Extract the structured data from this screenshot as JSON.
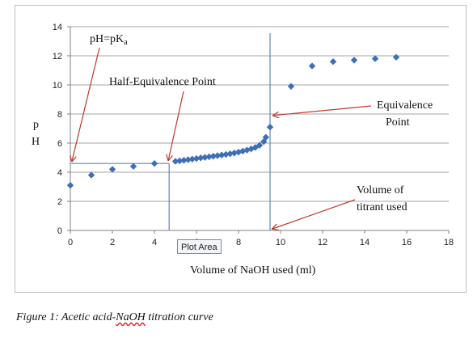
{
  "chart_data": {
    "type": "scatter",
    "xlabel": "Volume  of NaOH used (ml)",
    "ylabel": "p H",
    "xlim": [
      0,
      18
    ],
    "ylim": [
      0,
      14
    ],
    "xticks": [
      0,
      2,
      4,
      6,
      8,
      10,
      12,
      14,
      16,
      18
    ],
    "yticks": [
      0,
      2,
      4,
      6,
      8,
      10,
      12,
      14
    ],
    "grid": "horizontal",
    "marker_color": "#3f6fb5",
    "line_color": "#5b86c4",
    "arrow_color": "#c0392b",
    "series": [
      {
        "x": [
          0,
          1,
          2,
          3,
          4,
          5,
          5.2,
          5.4,
          5.6,
          5.8,
          6.0,
          6.2,
          6.4,
          6.6,
          6.8,
          7.0,
          7.2,
          7.4,
          7.6,
          7.8,
          8.0,
          8.2,
          8.4,
          8.6,
          8.8,
          9.0,
          9.2,
          9.3,
          9.5,
          10.5,
          11.5,
          12.5,
          13.5,
          14.5,
          15.5
        ],
        "y": [
          3.1,
          3.8,
          4.2,
          4.4,
          4.6,
          4.75,
          4.78,
          4.82,
          4.86,
          4.9,
          4.94,
          4.98,
          5.02,
          5.06,
          5.1,
          5.14,
          5.18,
          5.22,
          5.27,
          5.32,
          5.38,
          5.45,
          5.52,
          5.6,
          5.7,
          5.85,
          6.1,
          6.4,
          7.1,
          9.9,
          11.3,
          11.6,
          11.7,
          11.8,
          11.9
        ]
      }
    ],
    "guides": {
      "half_equivalence": {
        "x": 4.7,
        "y": 4.6
      },
      "equivalence": {
        "x": 9.5
      }
    },
    "annotations": {
      "pka_main": "pH=pK",
      "pka_sub": "a",
      "half_equivalence": "Half-Equivalence Point",
      "equivalence_line1": "Equivalence",
      "equivalence_line2": "Point",
      "volume_line1": "Volume  of",
      "volume_line2": "titrant used"
    }
  },
  "tooltip": "Plot Area",
  "caption": {
    "before": "Figure 1: Acetic acid-",
    "underlined": "NaOH",
    "after": " titration curve"
  }
}
